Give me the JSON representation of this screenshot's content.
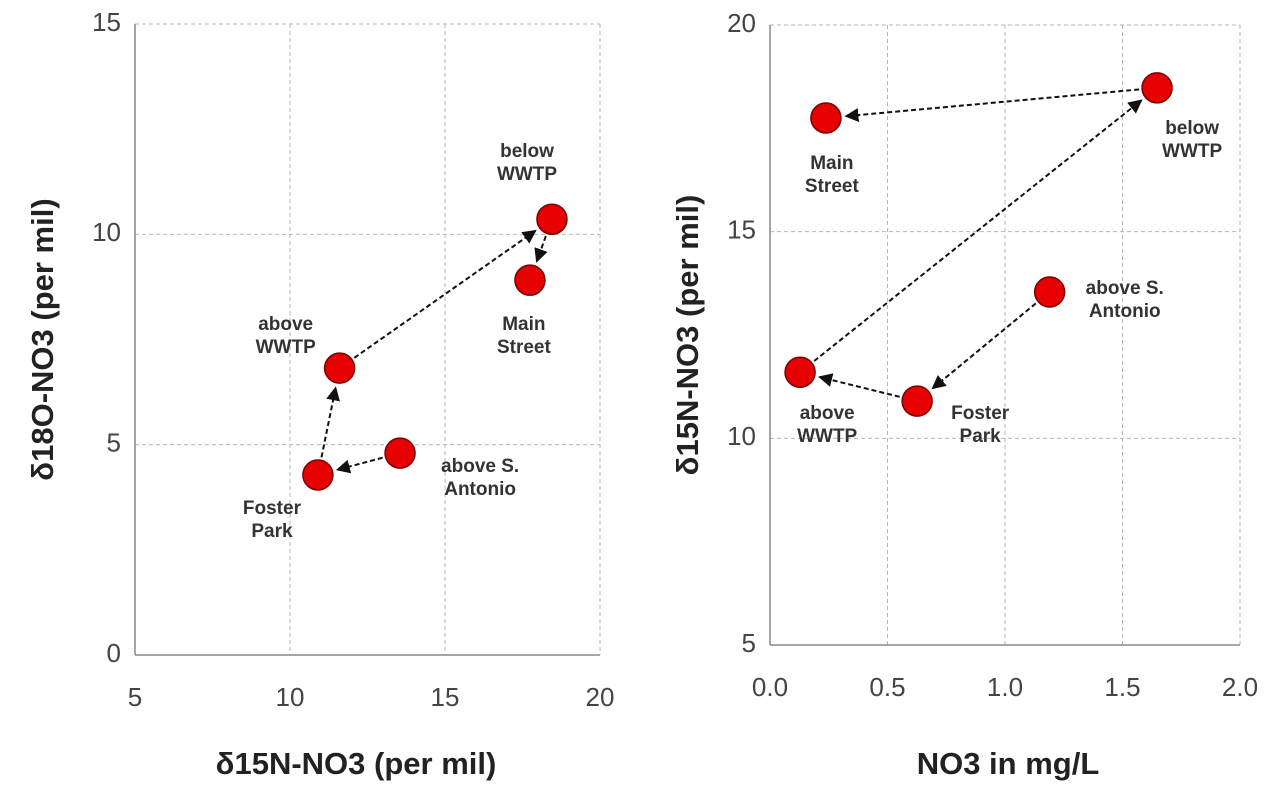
{
  "chart_data": [
    {
      "type": "scatter",
      "x_label": "δ15N-NO3 (per mil)",
      "y_label": "δ18O-NO3 (per mil)",
      "xlim": [
        5,
        20
      ],
      "xticks": [
        5,
        10,
        15,
        20
      ],
      "ylim": [
        0,
        15
      ],
      "yticks": [
        0,
        5,
        10,
        15
      ],
      "grid": true,
      "series": [
        {
          "color": "#e60000",
          "labels": [
            "above S.\nAntonio",
            "Foster\nPark",
            "above\nWWTP",
            "below\nWWTP",
            "Main\nStreet"
          ],
          "x": [
            13.55,
            10.9,
            11.6,
            18.45,
            17.74
          ],
          "values": [
            4.8,
            4.28,
            6.82,
            10.36,
            8.91
          ]
        }
      ]
    },
    {
      "type": "scatter",
      "x_label": "NO3 in mg/L",
      "y_label": "δ15N-NO3 (per mil)",
      "xlim": [
        0,
        2
      ],
      "xticks": [
        {
          "value": 0,
          "label": "0.0"
        },
        0.5,
        {
          "value": 1,
          "label": "1.0"
        },
        1.5,
        {
          "value": 2,
          "label": "2.0"
        }
      ],
      "ylim": [
        5,
        20
      ],
      "yticks": [
        5,
        10,
        15,
        20
      ],
      "grid": true,
      "series": [
        {
          "color": "#e60000",
          "labels": [
            "above S.\nAntonio",
            "Foster\nPark",
            "above\nWWTP",
            "below\nWWTP",
            "Main\nStreet"
          ],
          "x": [
            1.19,
            0.626,
            0.128,
            1.647,
            0.238
          ],
          "values": [
            13.54,
            10.9,
            11.6,
            18.48,
            17.75
          ]
        }
      ]
    }
  ]
}
